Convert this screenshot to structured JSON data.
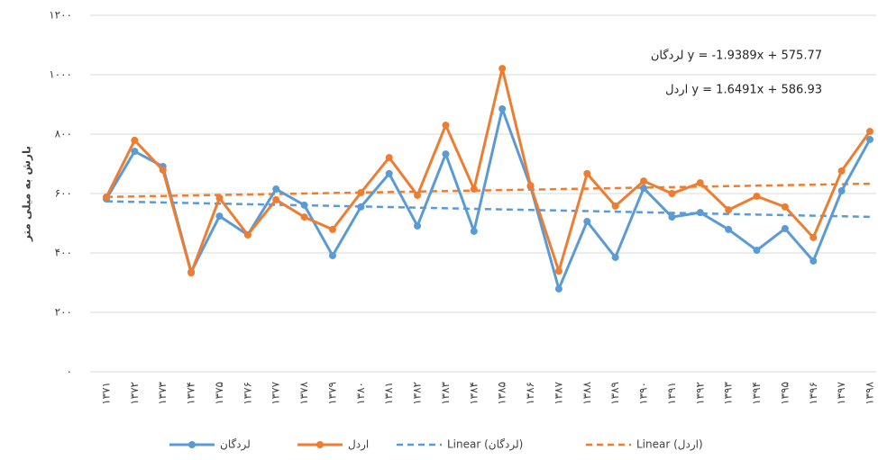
{
  "chart_data": {
    "type": "line",
    "y_label": "بارش به میلی متر",
    "categories": [
      "۱۳۷۱",
      "۱۳۷۲",
      "۱۳۷۳",
      "۱۳۷۴",
      "۱۳۷۵",
      "۱۳۷۶",
      "۱۳۷۷",
      "۱۳۷۸",
      "۱۳۷۹",
      "۱۳۸۰",
      "۱۳۸۱",
      "۱۳۸۲",
      "۱۳۸۳",
      "۱۳۸۴",
      "۱۳۸۵",
      "۱۳۸۶",
      "۱۳۸۷",
      "۱۳۸۸",
      "۱۳۸۹",
      "۱۳۹۰",
      "۱۳۹۱",
      "۱۳۹۲",
      "۱۳۹۳",
      "۱۳۹۴",
      "۱۳۹۵",
      "۱۳۹۶",
      "۱۳۹۷",
      "۱۳۹۸"
    ],
    "series": [
      {
        "name": "لردگان",
        "color": "#5b9bd5",
        "values": [
          582,
          742,
          691,
          336,
          524,
          461,
          615,
          561,
          391,
          555,
          667,
          491,
          733,
          473,
          885,
          624,
          279,
          506,
          385,
          618,
          521,
          536,
          479,
          409,
          482,
          373,
          609,
          782
        ]
      },
      {
        "name": "اردل",
        "color": "#ed7d31",
        "values": [
          588,
          779,
          679,
          333,
          585,
          461,
          579,
          521,
          479,
          603,
          721,
          594,
          830,
          615,
          1021,
          627,
          339,
          667,
          558,
          642,
          600,
          636,
          545,
          591,
          555,
          452,
          676,
          809
        ]
      }
    ],
    "trendlines": [
      {
        "name": "Linear (لردگان)",
        "color": "#5b9bd5",
        "slope": -1.9389,
        "intercept": 575.77,
        "equation": "لردگان y = -1.9389x + 575.77"
      },
      {
        "name": "Linear (اردل)",
        "color": "#ed7d31",
        "slope": 1.6491,
        "intercept": 586.93,
        "equation": "اردل y = 1.6491x + 586.93"
      }
    ],
    "ylim": [
      0,
      1200
    ],
    "yticks": [
      {
        "value": 0,
        "label": "۰"
      },
      {
        "value": 200,
        "label": "۲۰۰"
      },
      {
        "value": 400,
        "label": "۴۰۰"
      },
      {
        "value": 600,
        "label": "۶۰۰"
      },
      {
        "value": 800,
        "label": "۸۰۰"
      },
      {
        "value": 1000,
        "label": "۱۰۰۰"
      },
      {
        "value": 1200,
        "label": "۱۲۰۰"
      }
    ],
    "grid": true
  }
}
